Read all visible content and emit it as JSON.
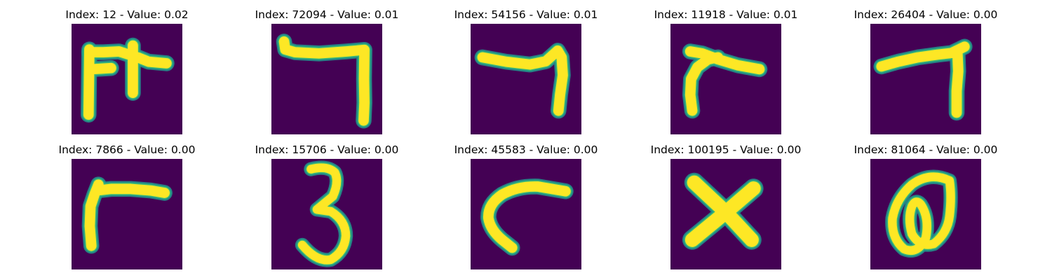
{
  "figure": {
    "panels": [
      {
        "title": "Index: 12 - Value: 0.02",
        "glyph": "comb-like-stroke-icon"
      },
      {
        "title": "Index: 72094 - Value: 0.01",
        "glyph": "hook-seven-icon"
      },
      {
        "title": "Index: 54156 - Value: 0.01",
        "glyph": "bent-seven-icon"
      },
      {
        "title": "Index: 11918 - Value: 0.01",
        "glyph": "slanted-gamma-icon"
      },
      {
        "title": "Index: 26404 - Value: 0.00",
        "glyph": "thin-seven-icon"
      },
      {
        "title": "Index: 7866 - Value: 0.00",
        "glyph": "gamma-stroke-icon"
      },
      {
        "title": "Index: 15706 - Value: 0.00",
        "glyph": "digit-three-icon"
      },
      {
        "title": "Index: 45583 - Value: 0.00",
        "glyph": "open-c-curve-icon"
      },
      {
        "title": "Index: 100195 - Value: 0.00",
        "glyph": "cross-x-icon"
      },
      {
        "title": "Index: 81064 - Value: 0.00",
        "glyph": "loop-zero-icon"
      }
    ],
    "colors": {
      "background": "#440154",
      "stroke_core": "#fde725",
      "stroke_edge": "#35b779",
      "stroke_halo": "#21918c"
    }
  }
}
